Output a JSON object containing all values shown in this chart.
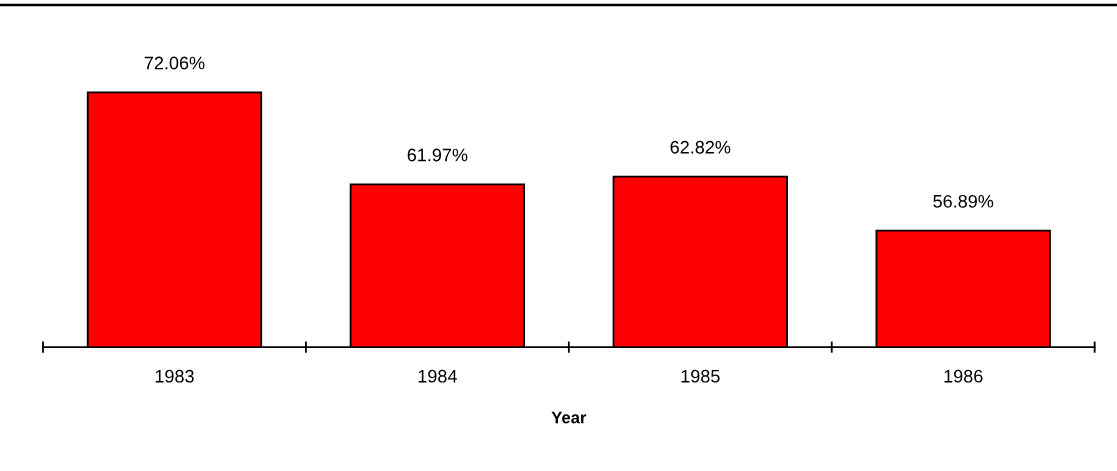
{
  "chart_data": {
    "type": "bar",
    "xlabel": "Year",
    "categories": [
      "1983",
      "1984",
      "1985",
      "1986"
    ],
    "values": [
      72.06,
      61.97,
      62.82,
      56.89
    ],
    "value_labels": [
      "72.06%",
      "61.97%",
      "62.82%",
      "56.89%"
    ],
    "color": "#ff0000",
    "tick_labels": "x"
  }
}
